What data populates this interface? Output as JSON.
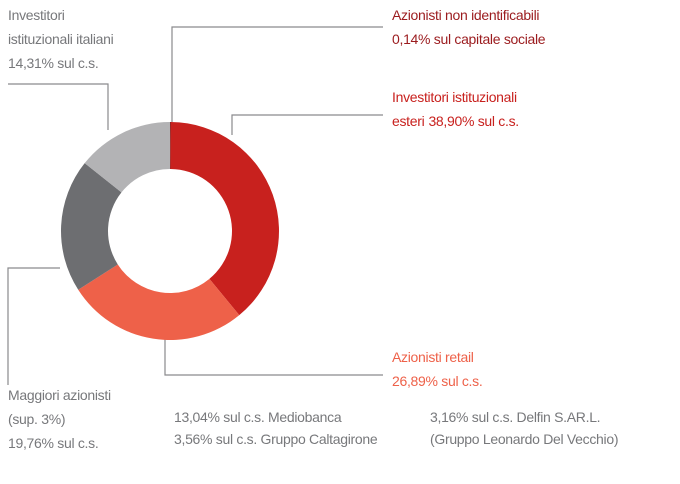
{
  "chart_data": {
    "type": "donut",
    "series": [
      {
        "name_lines": [
          "Azionisti non identificabili"
        ],
        "value": 0.14,
        "value_label": "0,14% sul capitale sociale",
        "color": "#8b1a1a",
        "text_color": "#9b1b1e"
      },
      {
        "name_lines": [
          "Investitori istituzionali",
          "esteri"
        ],
        "value": 38.9,
        "value_label": "38,90% sul c.s.",
        "color": "#c8211e",
        "text_color": "#c8211e"
      },
      {
        "name_lines": [
          "Azionisti retail"
        ],
        "value": 26.89,
        "value_label": "26,89% sul c.s.",
        "color": "#ee6149",
        "text_color": "#ee6149"
      },
      {
        "name_lines": [
          "Maggiori azionisti",
          "(sup. 3%)"
        ],
        "value": 19.76,
        "value_label": "19,76% sul c.s.",
        "color": "#6d6e71",
        "text_color": "#77787b"
      },
      {
        "name_lines": [
          "Investitori",
          "istituzionali italiani"
        ],
        "value": 14.31,
        "value_label": "14,31% sul c.s.",
        "color": "#b3b3b5",
        "text_color": "#77787b"
      }
    ],
    "annotations": [
      "13,04% sul c.s. Mediobanca",
      "3,56% sul c.s. Gruppo Caltagirone",
      "3,16% sul c.s. Delfin S.AR.L.",
      "(Gruppo Leonardo Del Vecchio)"
    ]
  }
}
